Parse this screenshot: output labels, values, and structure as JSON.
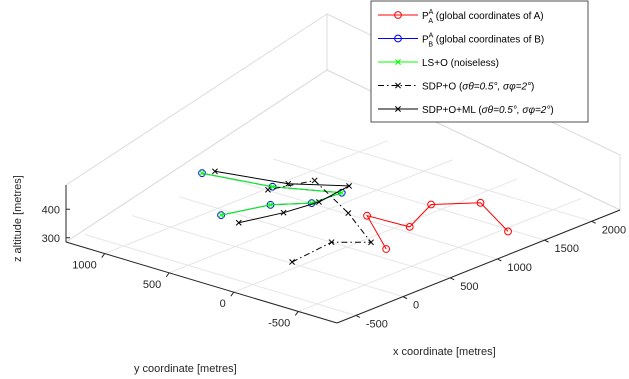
{
  "chart_data": {
    "type": "line3d",
    "xlabel": "x coordinate [metres]",
    "ylabel": "y coordinate [metres]",
    "zlabel": "z altitude [metres]",
    "x_ticks": [
      "-500",
      "0",
      "500",
      "1000",
      "1500",
      "2000"
    ],
    "y_ticks": [
      "1000",
      "500",
      "0",
      "-500"
    ],
    "z_ticks": [
      "400",
      "300"
    ],
    "xlim": [
      -700,
      2300
    ],
    "ylim": [
      -800,
      1300
    ],
    "zlim": [
      250,
      450
    ],
    "grid": true,
    "legend_position": "top-right",
    "legend": [
      {
        "label": "P",
        "sup": "A",
        "sub": "A",
        "desc": " (global coordinates of A)",
        "color": "#ff0000",
        "marker": "circle",
        "dash": "solid"
      },
      {
        "label": "P",
        "sup": "A",
        "sub": "B",
        "desc": " (global coordinates of B)",
        "color": "#0000ff",
        "marker": "circle",
        "dash": "solid"
      },
      {
        "label": "LS+O (noiseless)",
        "color": "#00ff00",
        "marker": "x",
        "dash": "solid"
      },
      {
        "label": "SDP+O (",
        "math": "σθ=0.5°, σφ=2°",
        "tail": ")",
        "color": "#000000",
        "marker": "x",
        "dash": "dashdot"
      },
      {
        "label": "SDP+O+ML (",
        "math": "σθ=0.5°, σφ=2°",
        "tail": ")",
        "color": "#000000",
        "marker": "x",
        "dash": "solid"
      }
    ],
    "series": [
      {
        "name": "P_A^A (global coordinates of A)",
        "color": "#ff0000",
        "marker": "circle",
        "dash": "solid",
        "points": [
          [
            300,
            -450,
            330
          ],
          [
            330,
            -280,
            420
          ],
          [
            700,
            -340,
            340
          ],
          [
            1050,
            -250,
            360
          ],
          [
            1300,
            -450,
            360
          ],
          [
            1250,
            -700,
            300
          ]
        ]
      },
      {
        "name": "P_B^A (global coordinates of B)",
        "color": "#0000ff",
        "marker": "circle",
        "dash": "solid",
        "points": [
          [
            -150,
            500,
            380
          ],
          [
            100,
            300,
            410
          ],
          [
            400,
            200,
            390
          ],
          [
            650,
            150,
            400
          ],
          [
            600,
            650,
            360
          ],
          [
            400,
            1050,
            380
          ]
        ]
      },
      {
        "name": "LS+O (noiseless)",
        "color": "#00ff00",
        "marker": "x",
        "dash": "solid",
        "points": [
          [
            -150,
            500,
            380
          ],
          [
            100,
            300,
            410
          ],
          [
            400,
            200,
            390
          ],
          [
            650,
            150,
            400
          ],
          [
            600,
            650,
            360
          ],
          [
            400,
            1050,
            380
          ]
        ]
      },
      {
        "name": "SDP+O",
        "color": "#000000",
        "marker": "x",
        "dash": "dashdot",
        "points": [
          [
            -150,
            -50,
            290
          ],
          [
            200,
            -100,
            320
          ],
          [
            550,
            -150,
            280
          ],
          [
            760,
            180,
            310
          ],
          [
            800,
            470,
            380
          ],
          [
            620,
            700,
            340
          ]
        ]
      },
      {
        "name": "SDP+O+ML",
        "color": "#000000",
        "marker": "x",
        "dash": "solid",
        "points": [
          [
            -100,
            400,
            360
          ],
          [
            170,
            250,
            380
          ],
          [
            450,
            180,
            390
          ],
          [
            700,
            130,
            420
          ],
          [
            630,
            550,
            380
          ],
          [
            400,
            950,
            400
          ]
        ]
      }
    ]
  }
}
